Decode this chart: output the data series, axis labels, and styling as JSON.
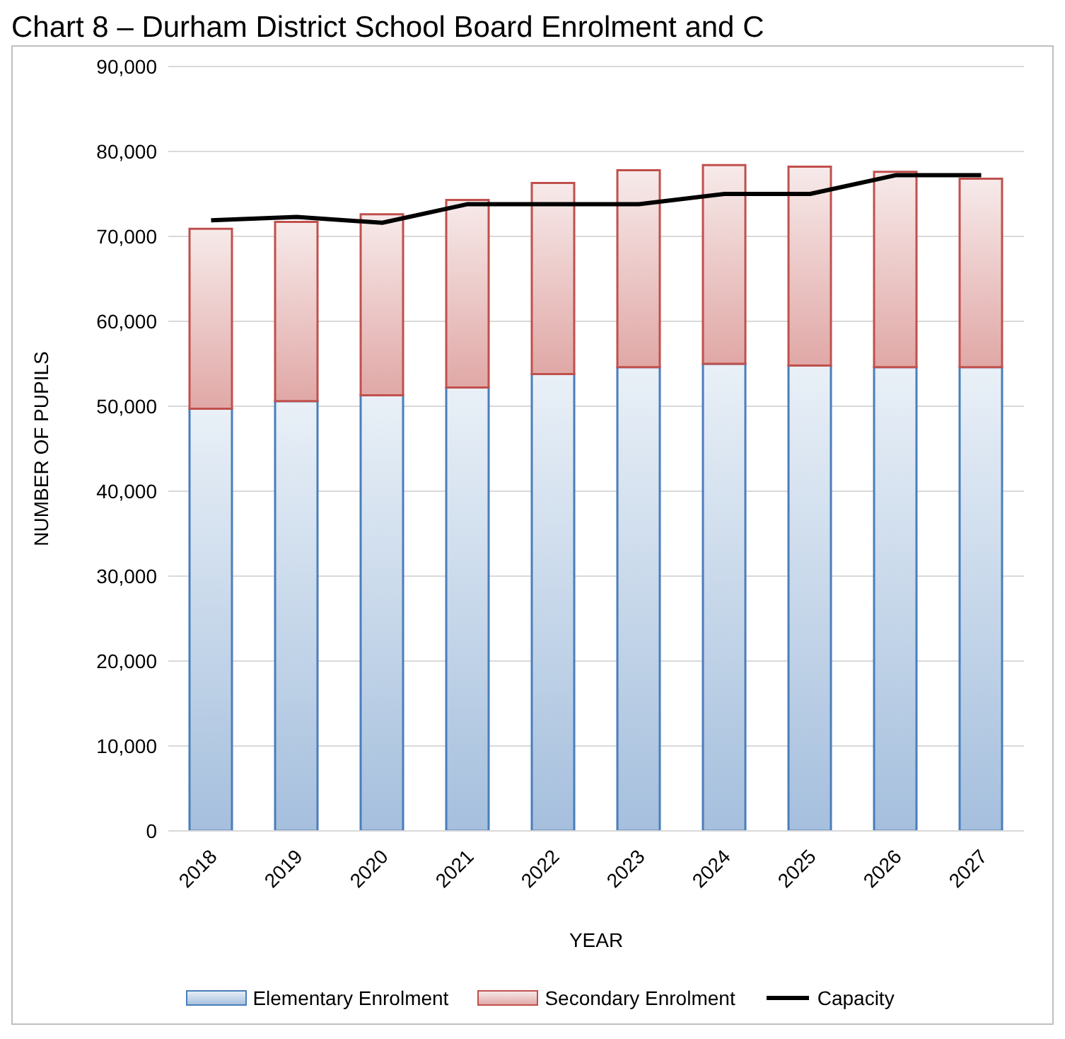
{
  "chart_data": {
    "type": "bar",
    "title": "Chart 8 – Durham District School Board Enrolment and C",
    "xlabel": "YEAR",
    "ylabel": "NUMBER OF PUPILS",
    "categories": [
      "2018",
      "2019",
      "2020",
      "2021",
      "2022",
      "2023",
      "2024",
      "2025",
      "2026",
      "2027"
    ],
    "stacked": true,
    "series": [
      {
        "name": "Elementary Enrolment",
        "color": "#4a7ebb",
        "values": [
          49700,
          50600,
          51300,
          52200,
          53800,
          54600,
          55000,
          54800,
          54600,
          54600
        ]
      },
      {
        "name": "Secondary Enrolment",
        "color": "#c0504d",
        "values": [
          21200,
          21100,
          21300,
          22100,
          22500,
          23200,
          23400,
          23400,
          23000,
          22200
        ]
      },
      {
        "name": "Capacity",
        "type": "line",
        "color": "#000000",
        "values": [
          71900,
          72300,
          71600,
          73800,
          73800,
          73800,
          75000,
          75000,
          77200,
          77200
        ]
      }
    ],
    "ylim": [
      0,
      90000
    ],
    "yticks": [
      {
        "value": 0,
        "label": "0"
      },
      {
        "value": 10000,
        "label": "10,000"
      },
      {
        "value": 20000,
        "label": "20,000"
      },
      {
        "value": 30000,
        "label": "30,000"
      },
      {
        "value": 40000,
        "label": "40,000"
      },
      {
        "value": 50000,
        "label": "50,000"
      },
      {
        "value": 60000,
        "label": "60,000"
      },
      {
        "value": 70000,
        "label": "70,000"
      },
      {
        "value": 80000,
        "label": "80,000"
      },
      {
        "value": 90000,
        "label": "90,000"
      }
    ],
    "grid": "y",
    "legend": "bottom",
    "marker": "none",
    "line_style": "solid"
  }
}
